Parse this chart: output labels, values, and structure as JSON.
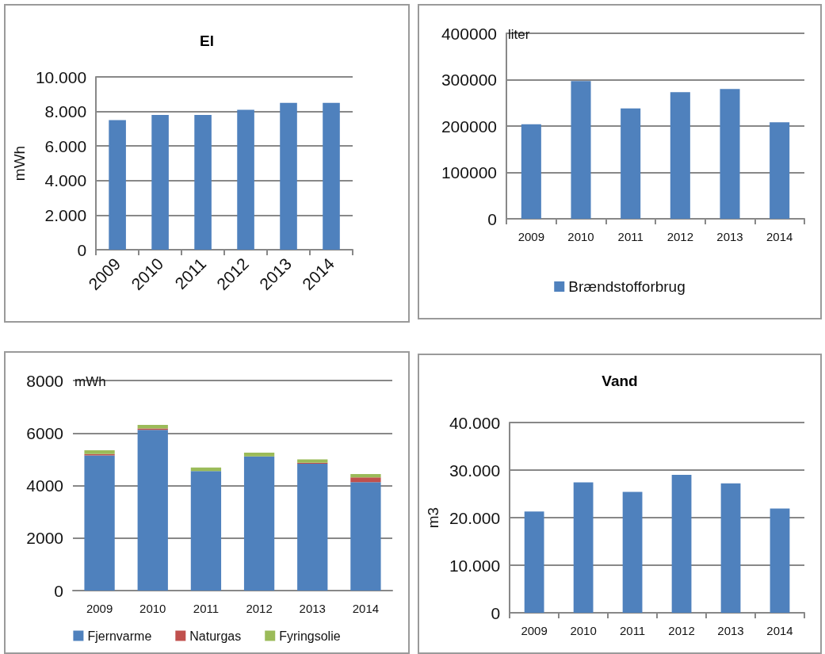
{
  "chart_data": [
    {
      "type": "bar",
      "title": "El",
      "ylabel": "mWh",
      "categories": [
        "2009",
        "2010",
        "2011",
        "2012",
        "2013",
        "2014"
      ],
      "values": [
        7500,
        7800,
        7800,
        8100,
        8500,
        8500
      ],
      "color": "#4f81bd",
      "ylim": [
        0,
        10000
      ],
      "yticks": [
        0,
        {
          "value": 2000,
          "label": "2.000"
        },
        {
          "value": 4000,
          "label": "4.000"
        },
        {
          "value": 6000,
          "label": "6.000"
        },
        {
          "value": 8000,
          "label": "8.000"
        },
        {
          "value": 10000,
          "label": "10.000"
        }
      ],
      "grid": "y",
      "legend": false
    },
    {
      "type": "bar",
      "ylabel": "liter",
      "categories": [
        "2009",
        "2010",
        "2011",
        "2012",
        "2013",
        "2014"
      ],
      "series": [
        {
          "name": "Brændstofforbrug",
          "color": "#4f81bd",
          "values": [
            204000,
            297000,
            238000,
            273000,
            280000,
            208000
          ]
        }
      ],
      "ylim": [
        0,
        400000
      ],
      "yticks": [
        0,
        100000,
        200000,
        300000,
        400000
      ],
      "grid": "y",
      "legend": "bottom"
    },
    {
      "type": "bar",
      "ylabel": "mWh",
      "stacked": true,
      "categories": [
        "2009",
        "2010",
        "2011",
        "2012",
        "2013",
        "2014"
      ],
      "series": [
        {
          "name": "Fjernvarme",
          "color": "#4f81bd",
          "values": [
            5150,
            6120,
            4550,
            5110,
            4830,
            4130
          ]
        },
        {
          "name": "Naturgas",
          "color": "#c0504d",
          "values": [
            50,
            50,
            null,
            null,
            40,
            180
          ]
        },
        {
          "name": "Fyringsolie",
          "color": "#9bbb59",
          "values": [
            140,
            140,
            140,
            140,
            130,
            130
          ]
        }
      ],
      "ylim": [
        0,
        8000
      ],
      "yticks": [
        0,
        2000,
        4000,
        6000,
        8000
      ],
      "grid": "y",
      "legend": "bottom"
    },
    {
      "type": "bar",
      "title": "Vand",
      "ylabel": "m3",
      "categories": [
        "2009",
        "2010",
        "2011",
        "2012",
        "2013",
        "2014"
      ],
      "values": [
        21300,
        27400,
        25400,
        29000,
        27200,
        21900
      ],
      "color": "#4f81bd",
      "ylim": [
        0,
        40000
      ],
      "yticks": [
        0,
        {
          "value": 10000,
          "label": "10.000"
        },
        {
          "value": 20000,
          "label": "20.000"
        },
        {
          "value": 30000,
          "label": "30.000"
        },
        {
          "value": 40000,
          "label": "40.000"
        }
      ],
      "grid": "y",
      "legend": false
    }
  ]
}
